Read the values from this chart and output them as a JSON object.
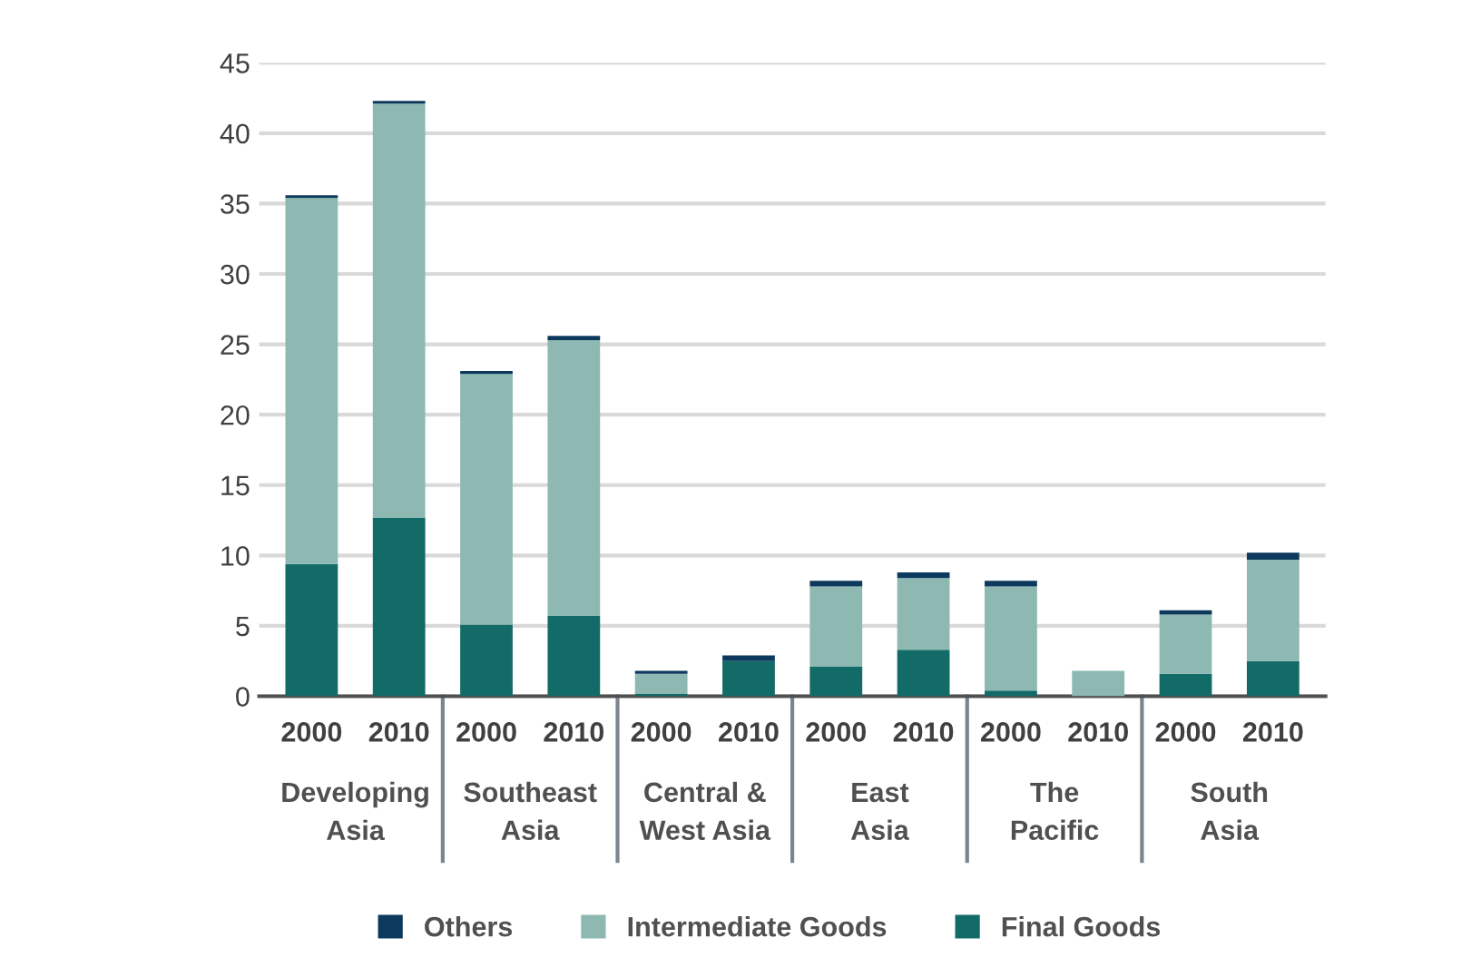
{
  "chart_data": {
    "type": "bar",
    "stacked": true,
    "categories": [
      "2000",
      "2010",
      "2000",
      "2010",
      "2000",
      "2010",
      "2000",
      "2010",
      "2000",
      "2010",
      "2000",
      "2010"
    ],
    "annotations": [
      "Developing\nAsia",
      "Southeast\nAsia",
      "Central &\nWest Asia",
      "East\nAsia",
      "The\nPacific",
      "South\nAsia"
    ],
    "series": [
      {
        "name": "Final Goods",
        "color": "#136b68",
        "values": [
          9.4,
          12.7,
          5.1,
          5.7,
          0.2,
          2.5,
          2.1,
          3.3,
          0.4,
          0,
          1.6,
          2.5
        ]
      },
      {
        "name": "Intermediate Goods",
        "color": "#8db9b2",
        "values": [
          26.0,
          29.4,
          17.8,
          19.6,
          1.4,
          0,
          5.7,
          5.1,
          7.4,
          1.8,
          4.2,
          7.2
        ]
      },
      {
        "name": "Others",
        "color": "#0d3a5c",
        "values": [
          0.2,
          0.2,
          0.2,
          0.3,
          0.2,
          0.4,
          0.4,
          0.4,
          0.4,
          0,
          0.3,
          0.5
        ]
      }
    ],
    "ylim": [
      0,
      45
    ],
    "yticks": [
      0,
      5,
      10,
      15,
      20,
      25,
      30,
      35,
      40,
      45
    ],
    "grid": "y",
    "legend": "bottom"
  }
}
